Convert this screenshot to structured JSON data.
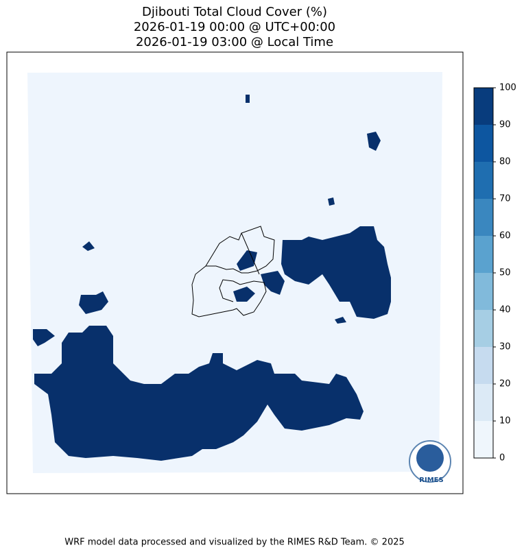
{
  "title": [
    "Djibouti Total Cloud Cover (%)",
    "2026-01-19 00:00 @ UTC+00:00",
    "2026-01-19 03:00 @ Local Time"
  ],
  "colorbar": {
    "lim": [
      0,
      100
    ],
    "ticks": [
      0,
      10,
      20,
      30,
      40,
      50,
      60,
      70,
      80,
      90,
      100
    ],
    "colors": [
      "#eff6fc",
      "#dceaf6",
      "#c6dbef",
      "#a6cee4",
      "#81badb",
      "#5aa2cf",
      "#3a87bf",
      "#1f6eb0",
      "#0d56a0",
      "#083c7d"
    ]
  },
  "logo_text": "RIMES",
  "footer": "WRF model data processed and visualized by the RIMES R&D Team. © 2025"
}
